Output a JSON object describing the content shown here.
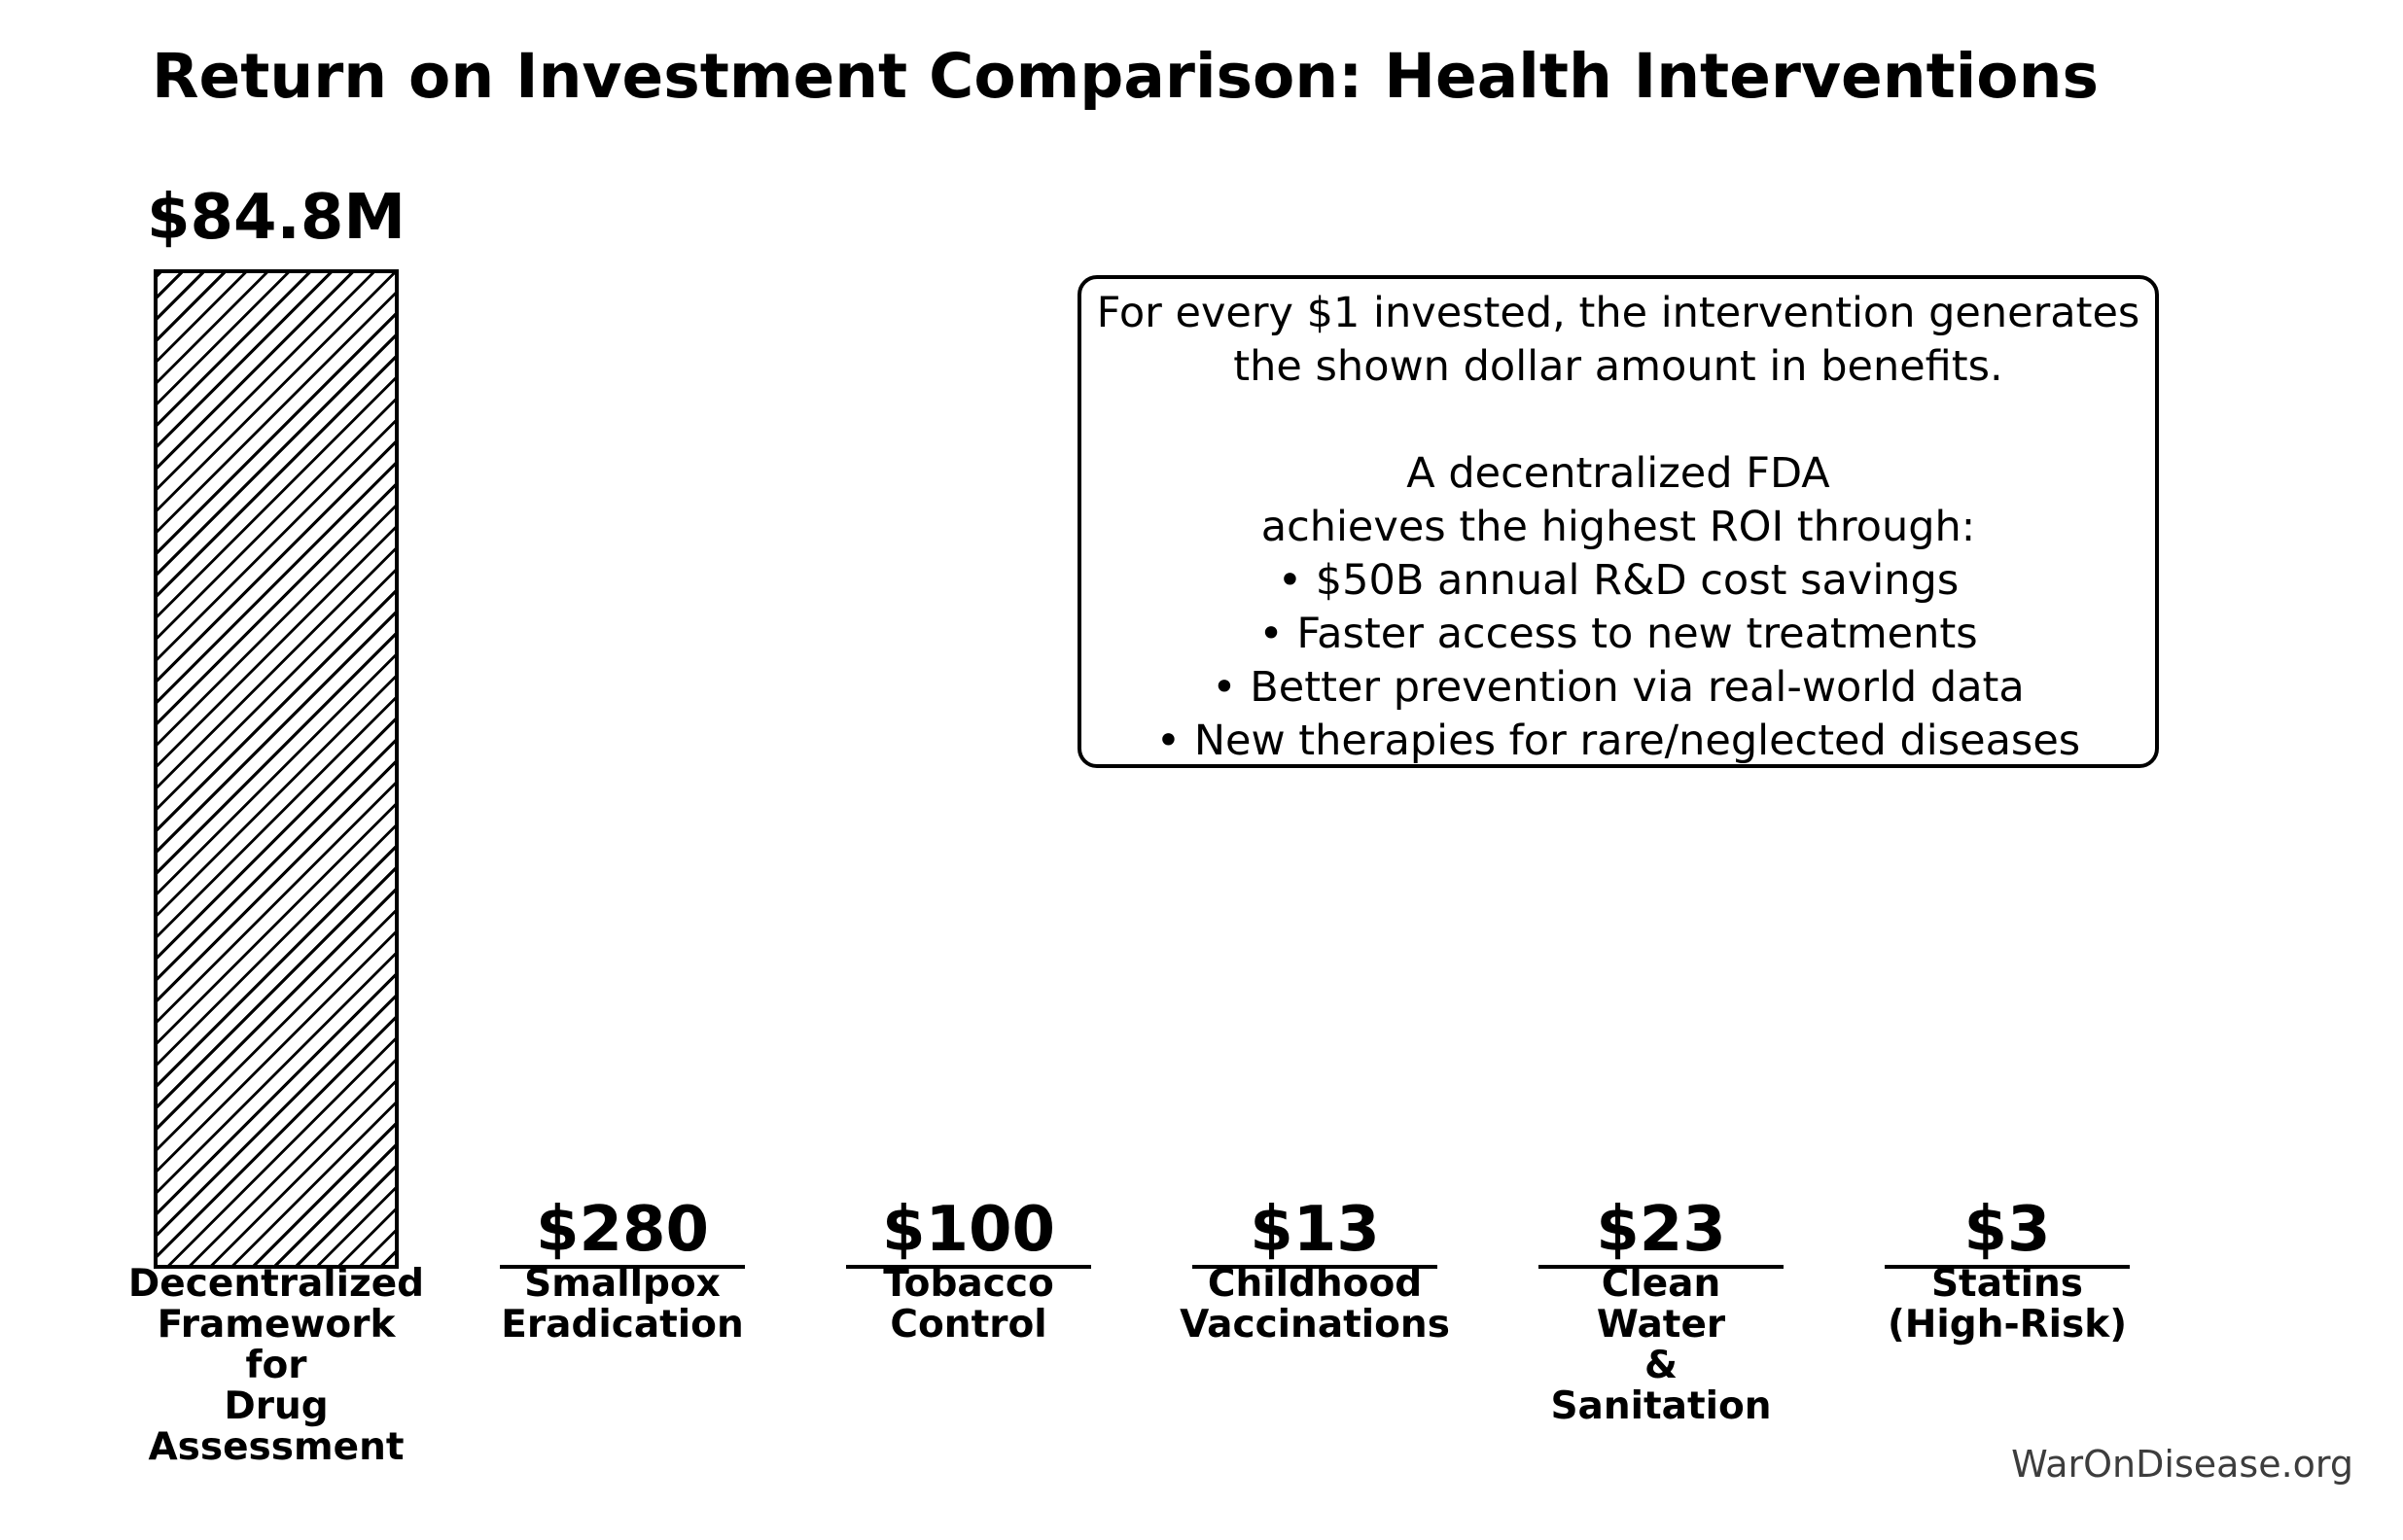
{
  "title": "Return on Investment Comparison: Health Interventions",
  "watermark": "WarOnDisease.org",
  "colors": {
    "background": "#ffffff",
    "bar_edge": "#000000",
    "bar_fill": "#ffffff",
    "text": "#000000",
    "watermark": "#3d3d3d"
  },
  "annotation": {
    "text": "For every $1 invested, the intervention generates\nthe shown dollar amount in benefits.\n\nA decentralized FDA\nachieves the highest ROI through:\n• $50B annual R&D cost savings\n• Faster access to new treatments\n• Better prevention via real-world data\n• New therapies for rare/neglected diseases"
  },
  "bars": [
    {
      "value_label": "$84.8M",
      "category": "Decentralized\nFramework\nfor\nDrug\nAssessment"
    },
    {
      "value_label": "$280",
      "category": "Smallpox\nEradication"
    },
    {
      "value_label": "$100",
      "category": "Tobacco\nControl"
    },
    {
      "value_label": "$13",
      "category": "Childhood\nVaccinations"
    },
    {
      "value_label": "$23",
      "category": "Clean\nWater\n&\nSanitation"
    },
    {
      "value_label": "$3",
      "category": "Statins\n(High-Risk)"
    }
  ],
  "chart_data": {
    "type": "bar",
    "title": "Return on Investment Comparison: Health Interventions",
    "categories": [
      "Decentralized Framework for Drug Assessment",
      "Smallpox Eradication",
      "Tobacco Control",
      "Childhood Vaccinations",
      "Clean Water & Sanitation",
      "Statins (High-Risk)"
    ],
    "values": [
      84800000,
      280,
      100,
      13,
      23,
      3
    ],
    "value_labels": [
      "$84.8M",
      "$280",
      "$100",
      "$13",
      "$23",
      "$3"
    ],
    "xlabel": "",
    "ylabel": "",
    "ylim": [
      0,
      93000000
    ],
    "grid": false,
    "legend": "none",
    "axes_visible": false,
    "bar_style": "white fill, black 4px edge, first bar has '/' diagonal hatch; remaining bars collapse to baseline lines",
    "annotation_position": "upper right",
    "unit_note": "benefit in dollars per $1 invested"
  }
}
